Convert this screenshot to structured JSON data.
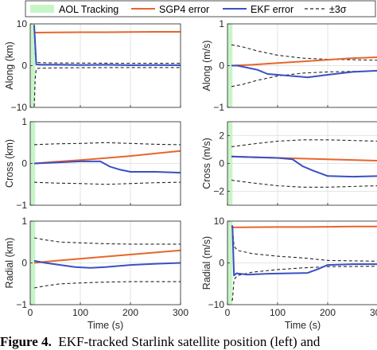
{
  "colors": {
    "aol": "#c8f5c8",
    "sgp4": "#e8652c",
    "ekf": "#3b4fc4",
    "sigma": "#262626"
  },
  "legend": {
    "aol": "AOL Tracking",
    "sgp4": "SGP4 error",
    "ekf": "EKF error",
    "sigma": "±3σ"
  },
  "caption": {
    "label": "Figure 4",
    "text": "EKF-tracked Starlink satellite position (left) and"
  },
  "chart_data": [
    {
      "type": "line",
      "row": 0,
      "col": 0,
      "ylabel": "Along (km)",
      "xlabel": "",
      "xlim": [
        0,
        300
      ],
      "ylim": [
        -10,
        10
      ],
      "xticks": [
        0,
        100,
        200,
        300
      ],
      "yticks": [
        -10,
        0,
        10
      ],
      "aol_span": [
        0,
        10
      ],
      "series": [
        {
          "key": "sgp4",
          "x": [
            8,
            50,
            100,
            150,
            200,
            250,
            300
          ],
          "y": [
            7.9,
            7.95,
            8.0,
            8.0,
            8.05,
            8.1,
            8.1
          ]
        },
        {
          "key": "ekf",
          "x": [
            8,
            10,
            12,
            20,
            50,
            100,
            150,
            200,
            250,
            300
          ],
          "y": [
            9.5,
            5,
            0.3,
            0.2,
            0.25,
            0.15,
            0.2,
            0.1,
            0.15,
            0.1
          ]
        },
        {
          "key": "sigma_hi",
          "x": [
            8,
            10,
            12,
            20,
            50,
            100,
            200,
            300
          ],
          "y": [
            9.8,
            3,
            0.8,
            0.7,
            0.65,
            0.6,
            0.55,
            0.55
          ]
        },
        {
          "key": "sigma_lo",
          "x": [
            8,
            10,
            12,
            20,
            50,
            100,
            200,
            300
          ],
          "y": [
            -9.8,
            -3,
            -0.7,
            -0.6,
            -0.55,
            -0.5,
            -0.45,
            -0.45
          ]
        }
      ]
    },
    {
      "type": "line",
      "row": 0,
      "col": 1,
      "ylabel": "Along (m/s)",
      "xlabel": "",
      "xlim": [
        0,
        300
      ],
      "ylim": [
        -1,
        1
      ],
      "xticks": [
        0,
        100,
        200,
        300
      ],
      "yticks": [
        -1,
        0,
        1
      ],
      "aol_span": [
        0,
        10
      ],
      "series": [
        {
          "key": "sgp4",
          "x": [
            8,
            50,
            100,
            150,
            200,
            250,
            300
          ],
          "y": [
            0.0,
            0.02,
            0.06,
            0.1,
            0.14,
            0.18,
            0.2
          ]
        },
        {
          "key": "ekf",
          "x": [
            8,
            20,
            40,
            60,
            80,
            100,
            130,
            160,
            200,
            250,
            300
          ],
          "y": [
            0.0,
            0.0,
            -0.05,
            -0.1,
            -0.2,
            -0.22,
            -0.25,
            -0.28,
            -0.22,
            -0.15,
            -0.12
          ]
        },
        {
          "key": "sigma_hi",
          "x": [
            8,
            30,
            60,
            100,
            150,
            200,
            250,
            300
          ],
          "y": [
            0.5,
            0.45,
            0.35,
            0.25,
            0.18,
            0.15,
            0.14,
            0.13
          ]
        },
        {
          "key": "sigma_lo",
          "x": [
            8,
            30,
            60,
            100,
            150,
            200,
            250,
            300
          ],
          "y": [
            -0.5,
            -0.45,
            -0.35,
            -0.25,
            -0.18,
            -0.15,
            -0.14,
            -0.13
          ]
        }
      ]
    },
    {
      "type": "line",
      "row": 1,
      "col": 0,
      "ylabel": "Cross (km)",
      "xlabel": "",
      "xlim": [
        0,
        300
      ],
      "ylim": [
        -1,
        1
      ],
      "xticks": [
        0,
        100,
        200,
        300
      ],
      "yticks": [
        -1,
        0,
        1
      ],
      "aol_span": [
        0,
        10
      ],
      "series": [
        {
          "key": "sgp4",
          "x": [
            8,
            50,
            100,
            150,
            200,
            250,
            300
          ],
          "y": [
            0.0,
            0.04,
            0.08,
            0.13,
            0.18,
            0.24,
            0.3
          ]
        },
        {
          "key": "ekf",
          "x": [
            8,
            50,
            100,
            140,
            160,
            180,
            200,
            250,
            300
          ],
          "y": [
            0.0,
            0.02,
            0.05,
            0.05,
            -0.08,
            -0.15,
            -0.2,
            -0.2,
            -0.22
          ]
        },
        {
          "key": "sigma_hi",
          "x": [
            8,
            50,
            100,
            150,
            200,
            250,
            300
          ],
          "y": [
            0.45,
            0.47,
            0.48,
            0.5,
            0.48,
            0.46,
            0.45
          ]
        },
        {
          "key": "sigma_lo",
          "x": [
            8,
            50,
            100,
            150,
            200,
            250,
            300
          ],
          "y": [
            -0.45,
            -0.47,
            -0.48,
            -0.5,
            -0.48,
            -0.46,
            -0.45
          ]
        }
      ]
    },
    {
      "type": "line",
      "row": 1,
      "col": 1,
      "ylabel": "Cross (m/s)",
      "xlabel": "",
      "xlim": [
        0,
        300
      ],
      "ylim": [
        -3,
        3
      ],
      "xticks": [
        0,
        100,
        200,
        300
      ],
      "yticks": [
        -2,
        0,
        2
      ],
      "aol_span": [
        0,
        10
      ],
      "series": [
        {
          "key": "sgp4",
          "x": [
            8,
            50,
            100,
            150,
            200,
            250,
            300
          ],
          "y": [
            0.5,
            0.45,
            0.4,
            0.35,
            0.3,
            0.25,
            0.2
          ]
        },
        {
          "key": "ekf",
          "x": [
            8,
            50,
            100,
            130,
            150,
            170,
            200,
            250,
            300
          ],
          "y": [
            0.5,
            0.45,
            0.4,
            0.3,
            -0.2,
            -0.5,
            -0.9,
            -0.95,
            -0.9
          ]
        },
        {
          "key": "sigma_hi",
          "x": [
            8,
            50,
            100,
            150,
            200,
            250,
            300
          ],
          "y": [
            1.2,
            1.4,
            1.6,
            1.7,
            1.7,
            1.65,
            1.6
          ]
        },
        {
          "key": "sigma_lo",
          "x": [
            8,
            50,
            100,
            150,
            200,
            250,
            300
          ],
          "y": [
            -1.2,
            -1.4,
            -1.6,
            -1.7,
            -1.7,
            -1.65,
            -1.6
          ]
        }
      ]
    },
    {
      "type": "line",
      "row": 2,
      "col": 0,
      "ylabel": "Radial (km)",
      "xlabel": "Time (s)",
      "xlim": [
        0,
        300
      ],
      "ylim": [
        -1,
        1
      ],
      "xticks": [
        0,
        100,
        200,
        300
      ],
      "yticks": [
        -1,
        0,
        1
      ],
      "aol_span": [
        0,
        10
      ],
      "series": [
        {
          "key": "sgp4",
          "x": [
            8,
            50,
            100,
            150,
            200,
            250,
            300
          ],
          "y": [
            0.0,
            0.05,
            0.1,
            0.15,
            0.2,
            0.25,
            0.3
          ]
        },
        {
          "key": "ekf",
          "x": [
            8,
            30,
            60,
            90,
            120,
            150,
            200,
            250,
            300
          ],
          "y": [
            0.05,
            0.0,
            -0.05,
            -0.1,
            -0.12,
            -0.1,
            -0.05,
            -0.02,
            0.0
          ]
        },
        {
          "key": "sigma_hi",
          "x": [
            8,
            30,
            60,
            100,
            150,
            200,
            250,
            300
          ],
          "y": [
            0.6,
            0.55,
            0.5,
            0.48,
            0.46,
            0.45,
            0.45,
            0.45
          ]
        },
        {
          "key": "sigma_lo",
          "x": [
            8,
            30,
            60,
            100,
            150,
            200,
            250,
            300
          ],
          "y": [
            -0.6,
            -0.55,
            -0.5,
            -0.48,
            -0.46,
            -0.45,
            -0.45,
            -0.45
          ]
        }
      ]
    },
    {
      "type": "line",
      "row": 2,
      "col": 1,
      "ylabel": "Radial (m/s)",
      "xlabel": "Time (s)",
      "xlim": [
        0,
        300
      ],
      "ylim": [
        -10,
        10
      ],
      "xticks": [
        0,
        100,
        200,
        300
      ],
      "yticks": [
        -10,
        0,
        10
      ],
      "aol_span": [
        0,
        10
      ],
      "series": [
        {
          "key": "sgp4",
          "x": [
            8,
            50,
            100,
            150,
            200,
            250,
            300
          ],
          "y": [
            8.5,
            8.55,
            8.6,
            8.6,
            8.65,
            8.7,
            8.7
          ]
        },
        {
          "key": "ekf",
          "x": [
            8,
            10,
            13,
            18,
            40,
            80,
            120,
            160,
            180,
            200,
            250,
            300
          ],
          "y": [
            8.7,
            8.7,
            -3,
            -2.5,
            -2.8,
            -2.6,
            -2.5,
            -2.4,
            -1.5,
            -0.5,
            -0.3,
            -0.3
          ]
        },
        {
          "key": "sigma_hi",
          "x": [
            8,
            10,
            13,
            20,
            50,
            100,
            150,
            200,
            250,
            300
          ],
          "y": [
            8.9,
            8.9,
            4,
            3,
            2.2,
            1.6,
            1.2,
            0.6,
            0.5,
            0.4
          ]
        },
        {
          "key": "sigma_lo",
          "x": [
            8,
            10,
            13,
            20,
            50,
            100,
            150,
            200,
            250,
            300
          ],
          "y": [
            -8.9,
            -8.9,
            -4,
            -3,
            -2.2,
            -1.6,
            -1.2,
            -0.9,
            -0.85,
            -0.8
          ]
        }
      ]
    }
  ]
}
